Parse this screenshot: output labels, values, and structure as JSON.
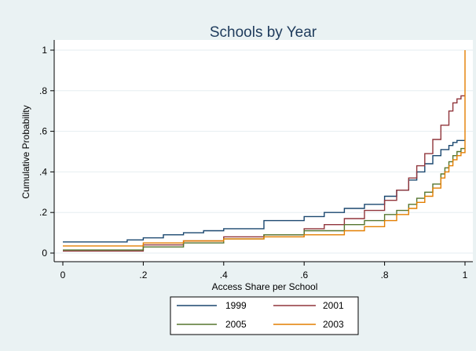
{
  "chart_data": {
    "type": "line",
    "title": "Schools by Year",
    "xlabel": "Access Share per School",
    "ylabel": "Cumulative Probability",
    "xlim": [
      0,
      1
    ],
    "ylim": [
      0,
      1
    ],
    "x_ticks": [
      {
        "value": 0,
        "label": "0"
      },
      {
        "value": 0.2,
        "label": ".2"
      },
      {
        "value": 0.4,
        "label": ".4"
      },
      {
        "value": 0.6,
        "label": ".6"
      },
      {
        "value": 0.8,
        "label": ".8"
      },
      {
        "value": 1,
        "label": "1"
      }
    ],
    "y_ticks": [
      {
        "value": 0,
        "label": "0"
      },
      {
        "value": 0.2,
        "label": ".2"
      },
      {
        "value": 0.4,
        "label": ".4"
      },
      {
        "value": 0.6,
        "label": ".6"
      },
      {
        "value": 0.8,
        "label": ".8"
      },
      {
        "value": 1,
        "label": "1"
      }
    ],
    "grid": true,
    "legend_position": "bottom",
    "series": [
      {
        "name": "1999",
        "color": "#1a476f",
        "x": [
          0,
          0.1,
          0.16,
          0.2,
          0.25,
          0.3,
          0.35,
          0.4,
          0.5,
          0.6,
          0.65,
          0.7,
          0.75,
          0.8,
          0.83,
          0.86,
          0.88,
          0.9,
          0.92,
          0.94,
          0.96,
          0.97,
          0.98,
          1.0
        ],
        "y": [
          0.055,
          0.055,
          0.065,
          0.075,
          0.09,
          0.1,
          0.11,
          0.12,
          0.16,
          0.18,
          0.2,
          0.22,
          0.24,
          0.28,
          0.31,
          0.36,
          0.4,
          0.44,
          0.48,
          0.51,
          0.53,
          0.545,
          0.555,
          0.555
        ]
      },
      {
        "name": "2001",
        "color": "#90353b",
        "x": [
          0,
          0.1,
          0.2,
          0.3,
          0.4,
          0.5,
          0.6,
          0.65,
          0.7,
          0.75,
          0.8,
          0.83,
          0.86,
          0.88,
          0.9,
          0.92,
          0.94,
          0.96,
          0.97,
          0.98,
          0.99,
          1.0
        ],
        "y": [
          0.01,
          0.01,
          0.04,
          0.06,
          0.08,
          0.09,
          0.12,
          0.14,
          0.17,
          0.21,
          0.26,
          0.31,
          0.37,
          0.43,
          0.49,
          0.56,
          0.63,
          0.7,
          0.74,
          0.76,
          0.775,
          0.775
        ]
      },
      {
        "name": "2005",
        "color": "#55752f",
        "x": [
          0,
          0.1,
          0.2,
          0.3,
          0.4,
          0.5,
          0.6,
          0.7,
          0.75,
          0.8,
          0.83,
          0.86,
          0.88,
          0.9,
          0.92,
          0.94,
          0.95,
          0.96,
          0.97,
          0.98,
          0.99,
          1.0
        ],
        "y": [
          0.015,
          0.015,
          0.03,
          0.05,
          0.07,
          0.09,
          0.11,
          0.14,
          0.16,
          0.19,
          0.21,
          0.24,
          0.27,
          0.3,
          0.34,
          0.39,
          0.42,
          0.45,
          0.48,
          0.5,
          0.515,
          0.515
        ]
      },
      {
        "name": "2003",
        "color": "#e37e00",
        "x": [
          0,
          0.1,
          0.2,
          0.3,
          0.4,
          0.5,
          0.6,
          0.7,
          0.75,
          0.8,
          0.83,
          0.86,
          0.88,
          0.9,
          0.92,
          0.94,
          0.95,
          0.96,
          0.97,
          0.98,
          0.99,
          0.999,
          1.0,
          1.0
        ],
        "y": [
          0.035,
          0.035,
          0.05,
          0.06,
          0.07,
          0.08,
          0.09,
          0.11,
          0.13,
          0.16,
          0.19,
          0.22,
          0.25,
          0.28,
          0.32,
          0.37,
          0.4,
          0.43,
          0.46,
          0.48,
          0.495,
          0.495,
          0.495,
          1.0
        ]
      }
    ]
  }
}
